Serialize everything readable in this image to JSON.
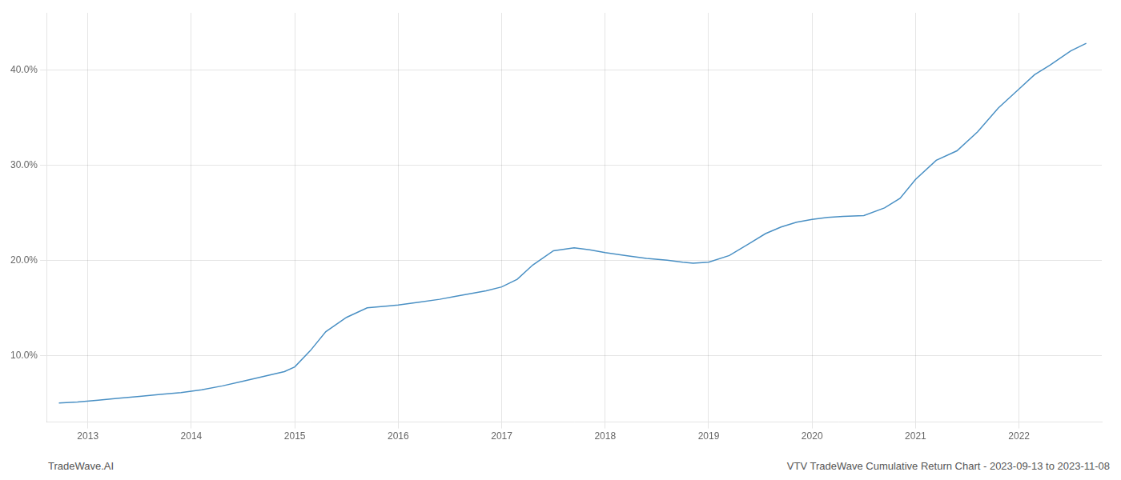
{
  "chart_data": {
    "type": "line",
    "x": [
      2012.72,
      2012.9,
      2013.1,
      2013.3,
      2013.5,
      2013.7,
      2013.9,
      2014.1,
      2014.3,
      2014.5,
      2014.7,
      2014.9,
      2015.0,
      2015.15,
      2015.3,
      2015.5,
      2015.7,
      2015.9,
      2016.0,
      2016.2,
      2016.4,
      2016.55,
      2016.7,
      2016.85,
      2017.0,
      2017.15,
      2017.3,
      2017.5,
      2017.7,
      2017.85,
      2018.0,
      2018.2,
      2018.4,
      2018.6,
      2018.75,
      2018.85,
      2019.0,
      2019.2,
      2019.4,
      2019.55,
      2019.7,
      2019.85,
      2020.0,
      2020.15,
      2020.3,
      2020.5,
      2020.7,
      2020.85,
      2021.0,
      2021.2,
      2021.4,
      2021.6,
      2021.8,
      2022.0,
      2022.15,
      2022.3,
      2022.5,
      2022.65
    ],
    "values": [
      5.0,
      5.1,
      5.3,
      5.5,
      5.7,
      5.9,
      6.1,
      6.4,
      6.8,
      7.3,
      7.8,
      8.3,
      8.8,
      10.5,
      12.5,
      14.0,
      15.0,
      15.2,
      15.3,
      15.6,
      15.9,
      16.2,
      16.5,
      16.8,
      17.2,
      18.0,
      19.5,
      21.0,
      21.3,
      21.1,
      20.8,
      20.5,
      20.2,
      20.0,
      19.8,
      19.7,
      19.8,
      20.5,
      21.8,
      22.8,
      23.5,
      24.0,
      24.3,
      24.5,
      24.6,
      24.7,
      25.5,
      26.5,
      28.5,
      30.5,
      31.5,
      33.5,
      36.0,
      38.0,
      39.5,
      40.5,
      42.0,
      42.8
    ],
    "color": "#4a90c4",
    "xlim": [
      2012.6,
      2022.8
    ],
    "xticks": [
      2013,
      2014,
      2015,
      2016,
      2017,
      2018,
      2019,
      2020,
      2021,
      2022
    ],
    "ylim": [
      3.0,
      46.0
    ],
    "yticks": [
      {
        "value": 10,
        "label": "10.0%"
      },
      {
        "value": 20,
        "label": "20.0%"
      },
      {
        "value": 30,
        "label": "30.0%"
      },
      {
        "value": 40,
        "label": "40.0%"
      }
    ],
    "grid": true,
    "annotations": [
      "TradeWave.AI",
      "VTV TradeWave Cumulative Return Chart - 2023-09-13 to 2023-11-08"
    ]
  }
}
